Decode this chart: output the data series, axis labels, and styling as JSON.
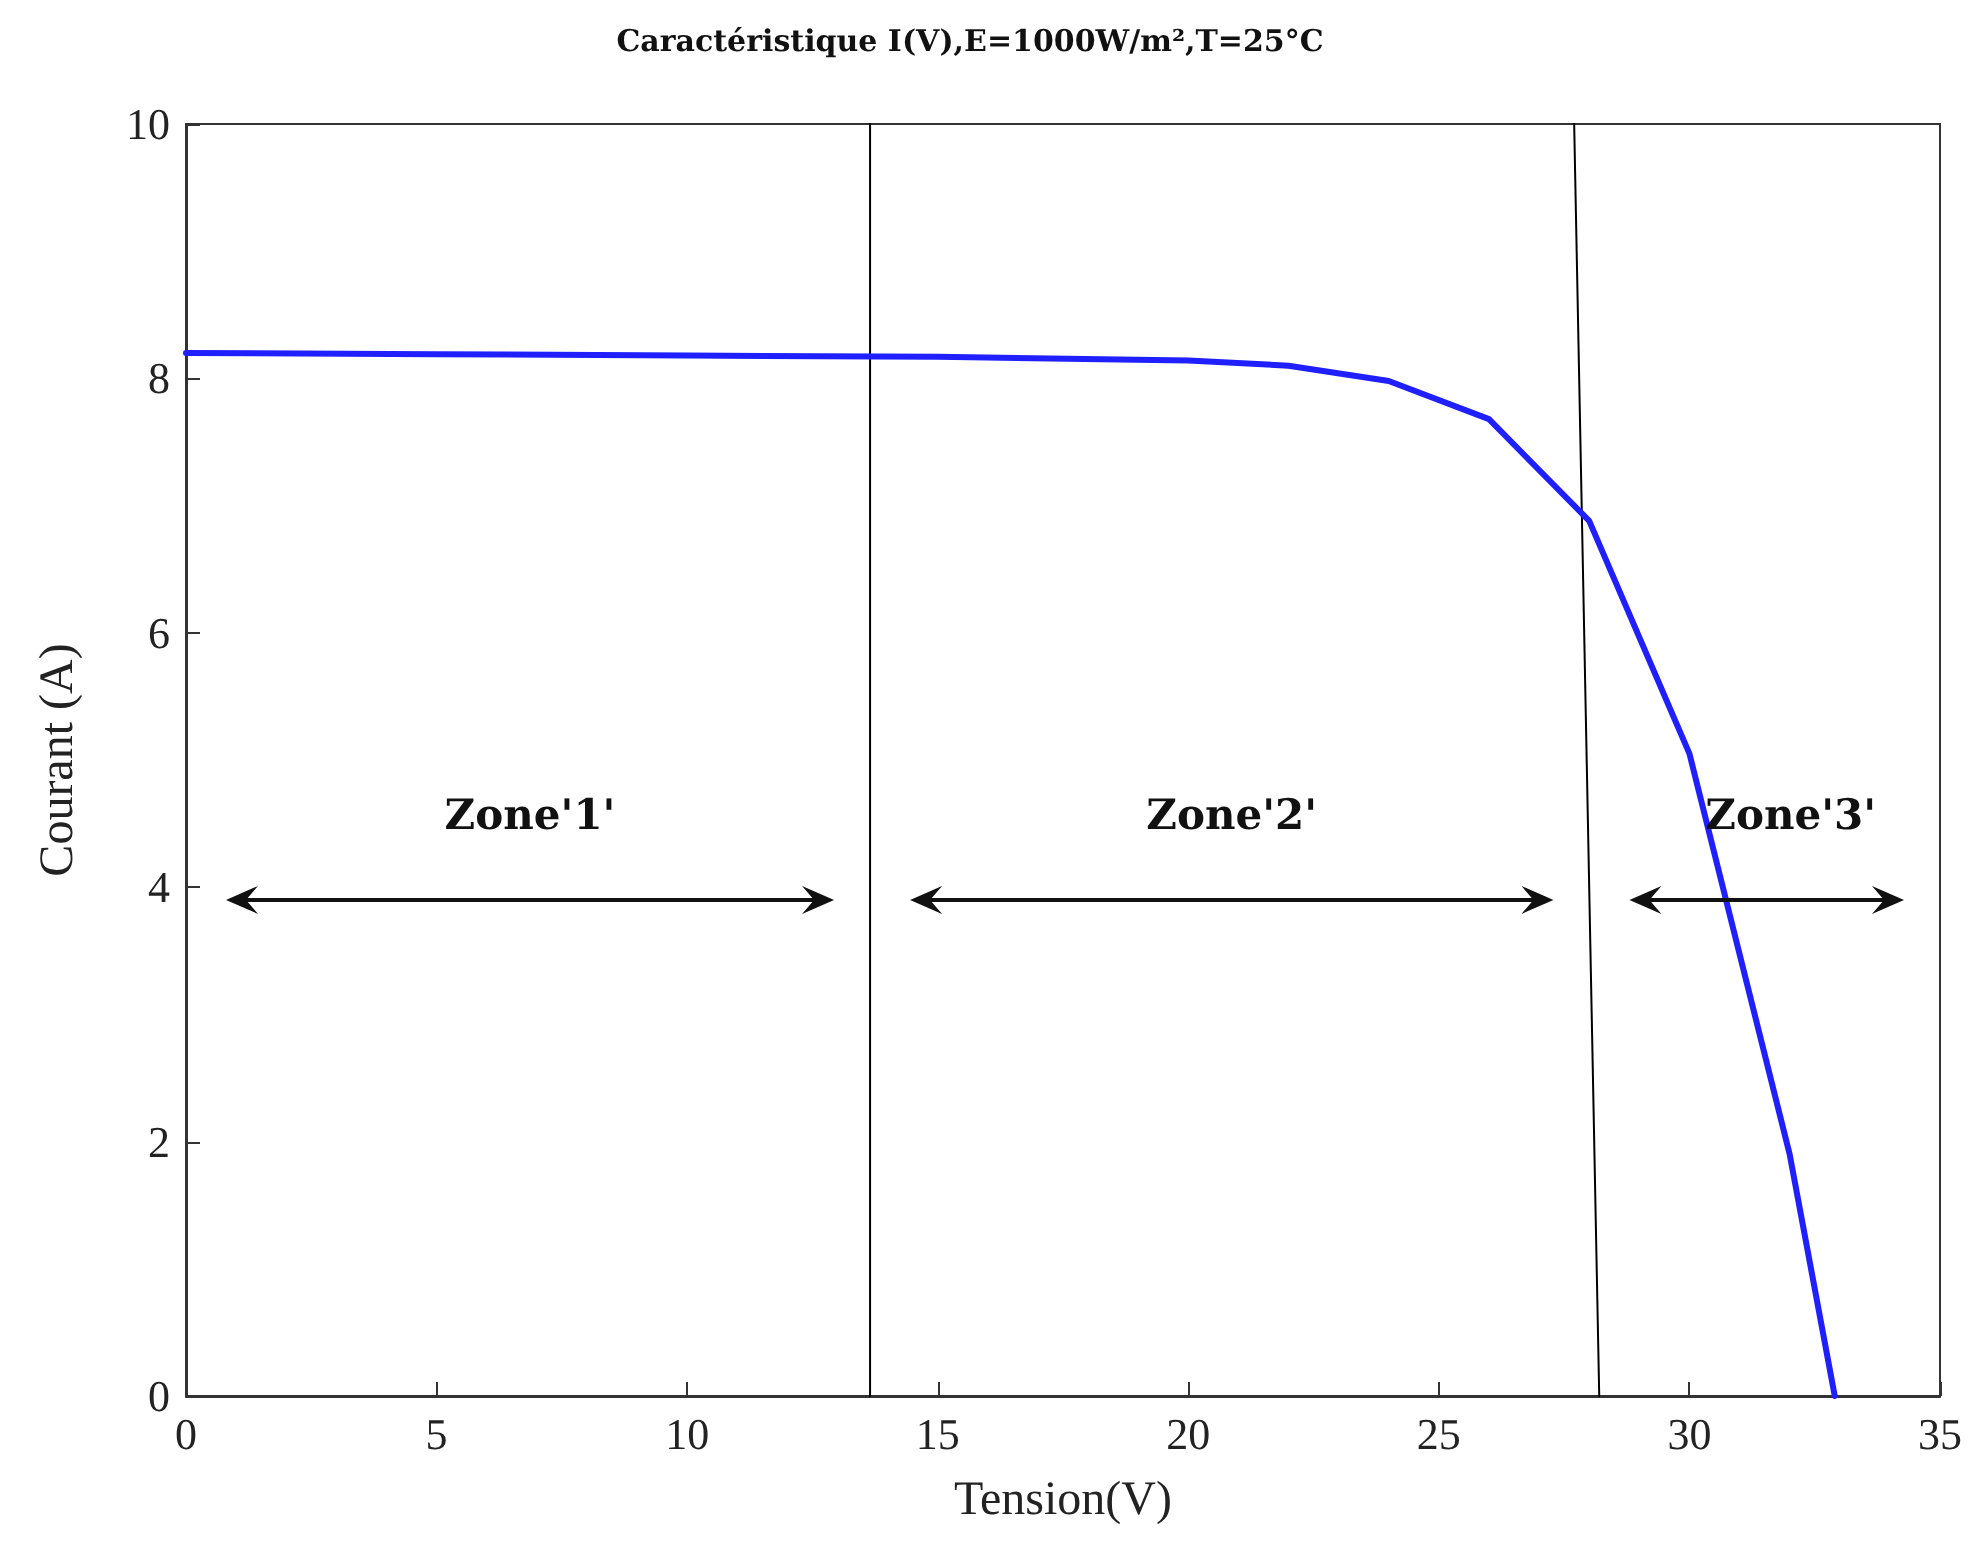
{
  "chart_data": {
    "type": "line",
    "title": "Caractéristique I(V),E=1000W/m²,T=25°C",
    "xlabel": "Tension(V)",
    "ylabel": "Courant (A)",
    "xlim": [
      0,
      35
    ],
    "xticks": [
      0,
      5,
      10,
      15,
      20,
      25,
      30,
      35
    ],
    "ylim": [
      0,
      10
    ],
    "yticks": [
      0,
      2,
      4,
      6,
      8,
      10
    ],
    "marker": "none",
    "line_style": "solid",
    "series": [
      {
        "color": "#1f1fff",
        "x": [
          0,
          5,
          10,
          15,
          20,
          22,
          24,
          26,
          28,
          30,
          32,
          32.9
        ],
        "values": [
          8.2,
          8.19,
          8.18,
          8.17,
          8.14,
          8.1,
          7.98,
          7.68,
          6.88,
          5.05,
          1.9,
          0
        ]
      },
      {
        "color": "#000000",
        "x": [
          13.65,
          13.65
        ],
        "values": [
          10,
          0
        ]
      },
      {
        "color": "#000000",
        "x": [
          27.7,
          28.2
        ],
        "values": [
          10,
          0
        ]
      }
    ],
    "annotations": [
      "Zone'1'",
      "Zone'2'",
      "Zone'3'"
    ]
  }
}
